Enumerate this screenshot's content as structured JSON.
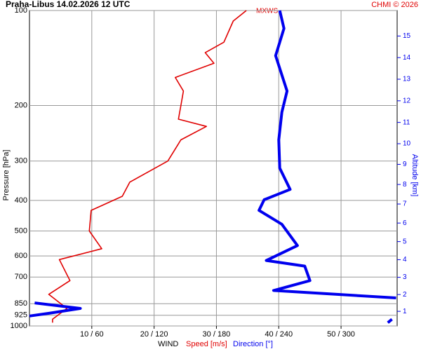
{
  "chart_data": {
    "type": "line",
    "title": "Praha-Libus   14.02.2026 12 UTC",
    "credit": "CHMI © 2026",
    "annotation": "MXWS",
    "y_label": "Pressure [hPa]",
    "y2_label": "Altitude [km]",
    "x_label": "WIND",
    "ylim": [
      100,
      1000
    ],
    "ylog": true,
    "yticks": [
      100,
      200,
      300,
      400,
      500,
      600,
      700,
      850,
      925,
      1000
    ],
    "xlim": [
      0,
      59
    ],
    "xticks": [
      {
        "value": 10,
        "label": "10 / 60"
      },
      {
        "value": 20,
        "label": "20 / 120"
      },
      {
        "value": 30,
        "label": "30 / 180"
      },
      {
        "value": 40,
        "label": "40 / 240"
      },
      {
        "value": 50,
        "label": "50 / 300"
      }
    ],
    "y2ticks": [
      1,
      2,
      3,
      4,
      5,
      6,
      7,
      8,
      9,
      10,
      11,
      12,
      13,
      14,
      15
    ],
    "grid": true,
    "series": [
      {
        "name": "Speed [m/s]",
        "color": "#e00000",
        "scale": 1,
        "pressure": [
          100,
          108,
          126,
          136,
          147,
          163,
          180,
          200,
          221,
          233,
          257,
          300,
          350,
          388,
          430,
          500,
          569,
          616,
          718,
          794,
          880,
          952,
          976
        ],
        "values": [
          34.8,
          32.7,
          31.2,
          28.2,
          29.6,
          23.4,
          24.7,
          24.3,
          23.9,
          28.4,
          24.3,
          22.2,
          16.1,
          14.9,
          9.9,
          9.6,
          11.6,
          4.8,
          6.5,
          3.1,
          6,
          3.7,
          3.7
        ]
      },
      {
        "name": "Direction [°]",
        "color": "#0000ee",
        "scale": 6,
        "pressure": [
          100,
          114,
          139,
          180,
          210,
          257,
          316,
          369,
          398,
          430,
          476,
          556,
          620,
          646,
          718,
          772,
          815,
          828,
          845,
          880,
          910,
          930,
          941,
          952,
          976
        ],
        "values": [
          241,
          245,
          237,
          248,
          243,
          240,
          241,
          251,
          226,
          221,
          243,
          258,
          228,
          265,
          270,
          235,
          353,
          null,
          5,
          49,
          20,
          0,
          null,
          349,
          345
        ]
      }
    ]
  }
}
